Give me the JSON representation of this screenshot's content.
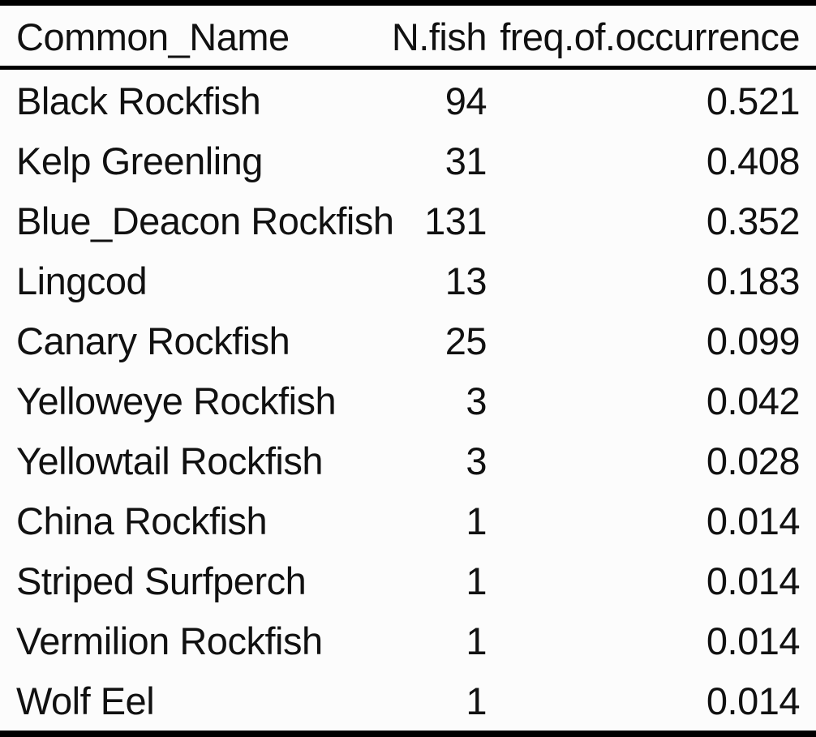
{
  "table": {
    "headers": [
      "Common_Name",
      "N.fish",
      "freq.of.occurrence"
    ],
    "rows": [
      [
        "Black Rockfish",
        "94",
        "0.521"
      ],
      [
        "Kelp Greenling",
        "31",
        "0.408"
      ],
      [
        "Blue_Deacon Rockfish",
        "131",
        "0.352"
      ],
      [
        "Lingcod",
        "13",
        "0.183"
      ],
      [
        "Canary Rockfish",
        "25",
        "0.099"
      ],
      [
        "Yelloweye Rockfish",
        "3",
        "0.042"
      ],
      [
        "Yellowtail Rockfish",
        "3",
        "0.028"
      ],
      [
        "China Rockfish",
        "1",
        "0.014"
      ],
      [
        "Striped Surfperch",
        "1",
        "0.014"
      ],
      [
        "Vermilion Rockfish",
        "1",
        "0.014"
      ],
      [
        "Wolf Eel",
        "1",
        "0.014"
      ]
    ]
  }
}
